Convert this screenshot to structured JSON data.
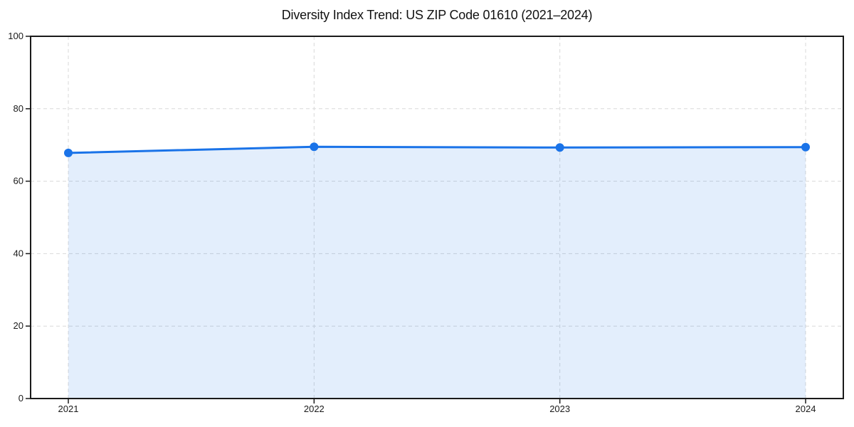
{
  "figure": {
    "background_color": "#ffffff"
  },
  "chart_data": {
    "type": "area",
    "title": "Diversity Index Trend: US ZIP Code 01610 (2021–2024)",
    "x": [
      "2021",
      "2022",
      "2023",
      "2024"
    ],
    "series": [
      {
        "name": "Diversity Index",
        "values": [
          67.8,
          69.5,
          69.3,
          69.4
        ]
      }
    ],
    "xlabel": "",
    "ylabel": "",
    "ylim": [
      0,
      100
    ],
    "yticks": [
      0,
      20,
      40,
      60,
      80,
      100
    ],
    "grid": true,
    "grid_style": "dashed",
    "legend": false,
    "colors": {
      "line": "#1a73e8",
      "marker": "#1a73e8",
      "fill": "#1a73e8",
      "grid": "#d9d9d9",
      "spine": "#1a1a1a",
      "tick_text": "#1a1a1a",
      "title_text": "#111111"
    },
    "fill_opacity": 0.12,
    "line_width": 3,
    "marker_radius": 6
  }
}
